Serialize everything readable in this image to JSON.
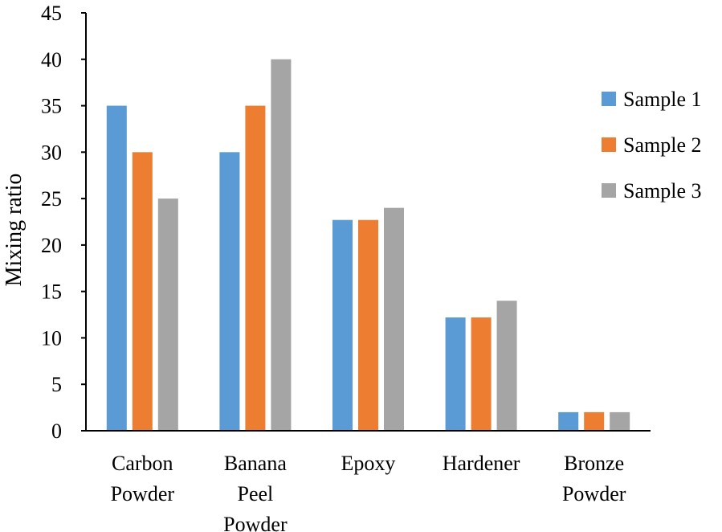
{
  "chart_data": {
    "type": "bar",
    "title": "",
    "xlabel": "",
    "ylabel": "Mixing ratio",
    "ylim": [
      0,
      45
    ],
    "yticks": [
      0,
      5,
      10,
      15,
      20,
      25,
      30,
      35,
      40,
      45
    ],
    "grid": false,
    "legend_position": "right",
    "categories": [
      [
        "Carbon",
        "Powder"
      ],
      [
        "Banana",
        "Peel",
        "Powder"
      ],
      [
        "Epoxy"
      ],
      [
        "Hardener"
      ],
      [
        "Bronze",
        "Powder"
      ]
    ],
    "series": [
      {
        "name": "Sample 1",
        "color": "#5b9bd5",
        "values": [
          35,
          30,
          22.7,
          12.2,
          2
        ]
      },
      {
        "name": "Sample 2",
        "color": "#ed7d31",
        "values": [
          30,
          35,
          22.7,
          12.2,
          2
        ]
      },
      {
        "name": "Sample 3",
        "color": "#a5a5a5",
        "values": [
          25,
          40,
          24,
          14,
          2
        ]
      }
    ]
  }
}
